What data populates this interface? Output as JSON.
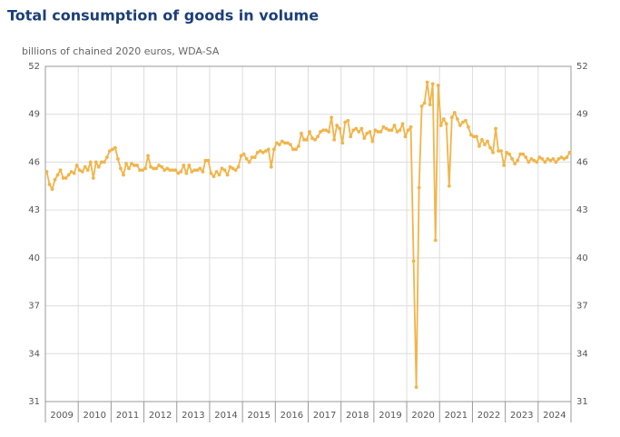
{
  "chart_data": {
    "type": "line",
    "title": "Total consumption of goods in volume",
    "subtitle": "billions of chained 2020 euros, WDA-SA",
    "color": "#f2b44a",
    "grid": true,
    "ylim": [
      31,
      52
    ],
    "yticks": [
      31,
      34,
      37,
      40,
      43,
      46,
      49,
      52
    ],
    "categories": [
      "2009",
      null,
      null,
      null,
      null,
      null,
      null,
      null,
      null,
      null,
      null,
      null,
      "2010",
      null,
      null,
      null,
      null,
      null,
      null,
      null,
      null,
      null,
      null,
      null,
      "2011",
      null,
      null,
      null,
      null,
      null,
      null,
      null,
      null,
      null,
      null,
      null,
      "2012",
      null,
      null,
      null,
      null,
      null,
      null,
      null,
      null,
      null,
      null,
      null,
      "2013",
      null,
      null,
      null,
      null,
      null,
      null,
      null,
      null,
      null,
      null,
      null,
      "2014",
      null,
      null,
      null,
      null,
      null,
      null,
      null,
      null,
      null,
      null,
      null,
      "2015",
      null,
      null,
      null,
      null,
      null,
      null,
      null,
      null,
      null,
      null,
      null,
      "2016",
      null,
      null,
      null,
      null,
      null,
      null,
      null,
      null,
      null,
      null,
      null,
      "2017",
      null,
      null,
      null,
      null,
      null,
      null,
      null,
      null,
      null,
      null,
      null,
      "2018",
      null,
      null,
      null,
      null,
      null,
      null,
      null,
      null,
      null,
      null,
      null,
      "2019",
      null,
      null,
      null,
      null,
      null,
      null,
      null,
      null,
      null,
      null,
      null,
      "2020",
      null,
      null,
      null,
      null,
      null,
      null,
      null,
      null,
      null,
      null,
      null,
      "2021",
      null,
      null,
      null,
      null,
      null,
      null,
      null,
      null,
      null,
      null,
      null,
      "2022",
      null,
      null,
      null,
      null,
      null,
      null,
      null,
      null,
      null,
      null,
      null,
      "2023",
      null,
      null,
      null,
      null,
      null,
      null,
      null,
      null,
      null,
      null,
      null,
      "2024",
      null,
      null,
      null,
      null,
      null,
      null,
      null,
      null,
      null,
      null,
      null
    ],
    "values": [
      45.4,
      44.6,
      44.3,
      44.9,
      45.2,
      45.5,
      45.0,
      45.0,
      45.2,
      45.4,
      45.3,
      45.8,
      45.5,
      45.4,
      45.7,
      45.5,
      46.0,
      45.0,
      46.0,
      45.7,
      46.0,
      46.0,
      46.3,
      46.7,
      46.8,
      46.9,
      46.2,
      45.6,
      45.2,
      45.9,
      45.6,
      45.9,
      45.8,
      45.8,
      45.5,
      45.5,
      45.6,
      46.4,
      45.7,
      45.6,
      45.6,
      45.8,
      45.7,
      45.5,
      45.6,
      45.5,
      45.5,
      45.5,
      45.3,
      45.4,
      45.8,
      45.3,
      45.8,
      45.4,
      45.5,
      45.5,
      45.6,
      45.4,
      46.1,
      46.1,
      45.3,
      45.1,
      45.4,
      45.2,
      45.6,
      45.5,
      45.2,
      45.7,
      45.6,
      45.5,
      45.7,
      46.4,
      46.5,
      46.2,
      46.0,
      46.3,
      46.3,
      46.6,
      46.7,
      46.6,
      46.7,
      46.8,
      45.7,
      46.8,
      47.2,
      47.1,
      47.3,
      47.2,
      47.2,
      47.1,
      46.8,
      46.8,
      47.0,
      47.8,
      47.4,
      47.4,
      47.9,
      47.5,
      47.4,
      47.6,
      47.9,
      48.0,
      48.0,
      47.9,
      48.8,
      47.4,
      48.3,
      48.1,
      47.2,
      48.5,
      48.6,
      47.6,
      48.0,
      48.1,
      47.9,
      48.1,
      47.5,
      47.8,
      47.9,
      47.3,
      48.0,
      47.9,
      47.9,
      48.2,
      48.1,
      48.0,
      48.0,
      48.3,
      47.9,
      48.0,
      48.4,
      47.6,
      48.0,
      48.2,
      39.8,
      31.9,
      44.4,
      49.5,
      49.7,
      51.0,
      49.6,
      50.9,
      41.1,
      50.8,
      48.3,
      48.7,
      48.4,
      44.5,
      48.8,
      49.1,
      48.7,
      48.3,
      48.5,
      48.6,
      48.2,
      47.7,
      47.6,
      47.6,
      47.0,
      47.4,
      47.1,
      47.3,
      46.9,
      46.6,
      48.1,
      46.7,
      46.7,
      45.8,
      46.6,
      46.5,
      46.2,
      45.9,
      46.1,
      46.5,
      46.5,
      46.3,
      46.0,
      46.2,
      46.1,
      46.0,
      46.3,
      46.2,
      46.0,
      46.2,
      46.1,
      46.2,
      46.0,
      46.2,
      46.3,
      46.2,
      46.3,
      46.6
    ]
  }
}
